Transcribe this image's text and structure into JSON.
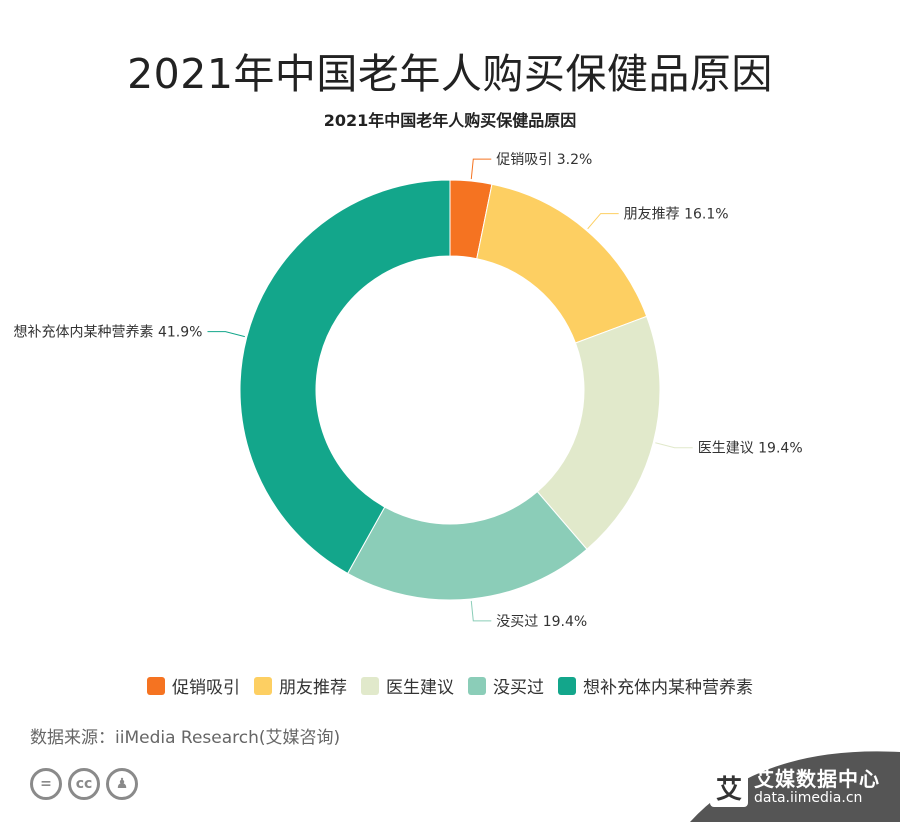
{
  "page_title": "2021年中国老年人购买保健品原因",
  "chart_data": {
    "type": "pie",
    "donut": true,
    "title": "2021年中国老年人购买保健品原因",
    "categories": [
      "促销吸引",
      "朋友推荐",
      "医生建议",
      "没买过",
      "想补充体内某种营养素"
    ],
    "values": [
      3.2,
      16.1,
      19.4,
      19.4,
      41.9
    ],
    "unit": "%",
    "colors": [
      "#f57321",
      "#fdcf62",
      "#e1e9cb",
      "#8bcdb8",
      "#13a68b"
    ],
    "slice_labels": [
      "促销吸引 3.2%",
      "朋友推荐 16.1%",
      "医生建议 19.4%",
      "没买过 19.4%",
      "想补充体内某种营养素 41.9%"
    ],
    "legend_placement": "bottom"
  },
  "source": "数据来源：iiMedia Research(艾媒咨询)",
  "license_icons": [
    "equals-icon",
    "cc-icon",
    "person-icon"
  ],
  "brand": {
    "logo_char": "艾",
    "name": "艾媒数据中心",
    "url": "data.iimedia.cn",
    "color": "#555555"
  }
}
